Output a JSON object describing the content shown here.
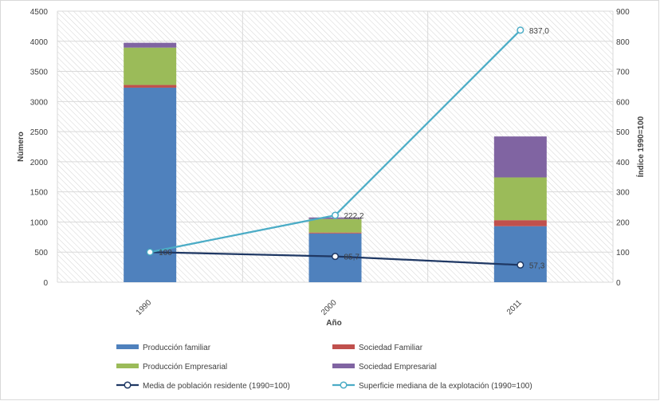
{
  "chart_data": {
    "type": "bar",
    "stacked": true,
    "categories": [
      "1990",
      "2000",
      "2011"
    ],
    "xlabel": "Año",
    "ylabel": "Número",
    "y2label": "Índice 1990=100",
    "ylim": [
      0,
      4500
    ],
    "y2lim": [
      0,
      900
    ],
    "yticks": [
      0,
      500,
      1000,
      1500,
      2000,
      2500,
      3000,
      3500,
      4000,
      4500
    ],
    "y2ticks": [
      0,
      100,
      200,
      300,
      400,
      500,
      600,
      700,
      800,
      900
    ],
    "grid": true,
    "legend_position": "bottom",
    "series": [
      {
        "name": "Producción familiar",
        "kind": "bar",
        "axis": "left",
        "color": "#4f81bd",
        "values": [
          3230,
          810,
          930
        ]
      },
      {
        "name": "Sociedad Familiar",
        "kind": "bar",
        "axis": "left",
        "color": "#c0504d",
        "values": [
          45,
          15,
          100
        ]
      },
      {
        "name": "Producción Empresarial",
        "kind": "bar",
        "axis": "left",
        "color": "#9bbb59",
        "values": [
          620,
          225,
          710
        ]
      },
      {
        "name": "Sociedad Empresarial",
        "kind": "bar",
        "axis": "left",
        "color": "#8064a2",
        "values": [
          80,
          25,
          680
        ]
      },
      {
        "name": "Media de población residente (1990=100)",
        "kind": "line",
        "axis": "right",
        "color": "#1f3864",
        "values": [
          100,
          85.7,
          57.3
        ],
        "labels": [
          "100",
          "85,7",
          "57,3"
        ]
      },
      {
        "name": "Superficie mediana de la explotación (1990=100)",
        "kind": "line",
        "axis": "right",
        "color": "#4bacc6",
        "values": [
          100,
          222.2,
          837.0
        ],
        "labels": [
          "",
          "222,2",
          "837,0"
        ]
      }
    ]
  }
}
